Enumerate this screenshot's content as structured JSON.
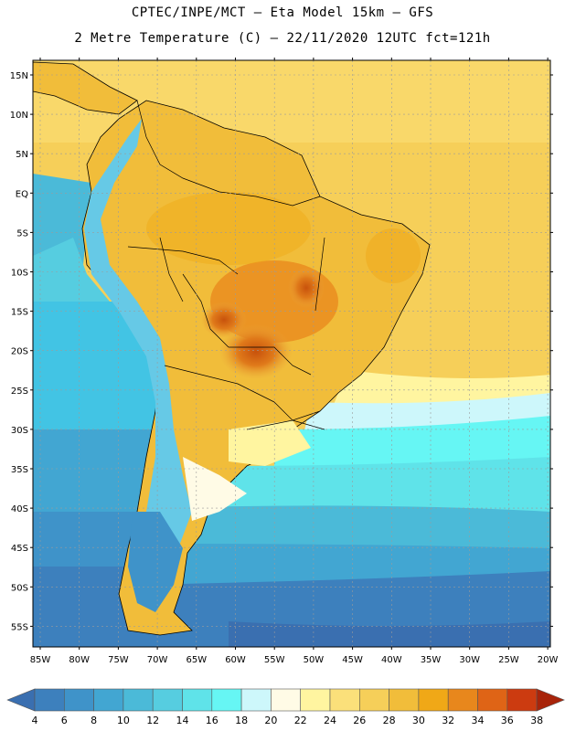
{
  "header": {
    "line1": "CPTEC/INPE/MCT –  Eta Model 15km – GFS",
    "line2": "2 Metre Temperature (C) – 22/11/2020 12UTC fct=121h"
  },
  "lat_labels": [
    "15N",
    "10N",
    "5N",
    "EQ",
    "5S",
    "10S",
    "15S",
    "20S",
    "25S",
    "30S",
    "35S",
    "40S",
    "45S",
    "50S",
    "55S"
  ],
  "lon_labels": [
    "85W",
    "80W",
    "75W",
    "70W",
    "65W",
    "60W",
    "55W",
    "50W",
    "45W",
    "40W",
    "35W",
    "30W",
    "25W",
    "20W"
  ],
  "colorbar": {
    "labels": [
      "4",
      "6",
      "8",
      "10",
      "12",
      "14",
      "16",
      "18",
      "20",
      "22",
      "24",
      "26",
      "28",
      "30",
      "32",
      "34",
      "36",
      "38"
    ],
    "colors": [
      "#3a6fb0",
      "#3d80bd",
      "#3f93c9",
      "#42a6d2",
      "#4bbad8",
      "#56cde0",
      "#5fe3e9",
      "#66f6f4",
      "#cdf7fb",
      "#fffbe6",
      "#fff5a0",
      "#fbe07a",
      "#f6cf59",
      "#f1bd3a",
      "#f0a817",
      "#e8871c",
      "#df6416",
      "#cc3b10",
      "#a8240a"
    ]
  }
}
